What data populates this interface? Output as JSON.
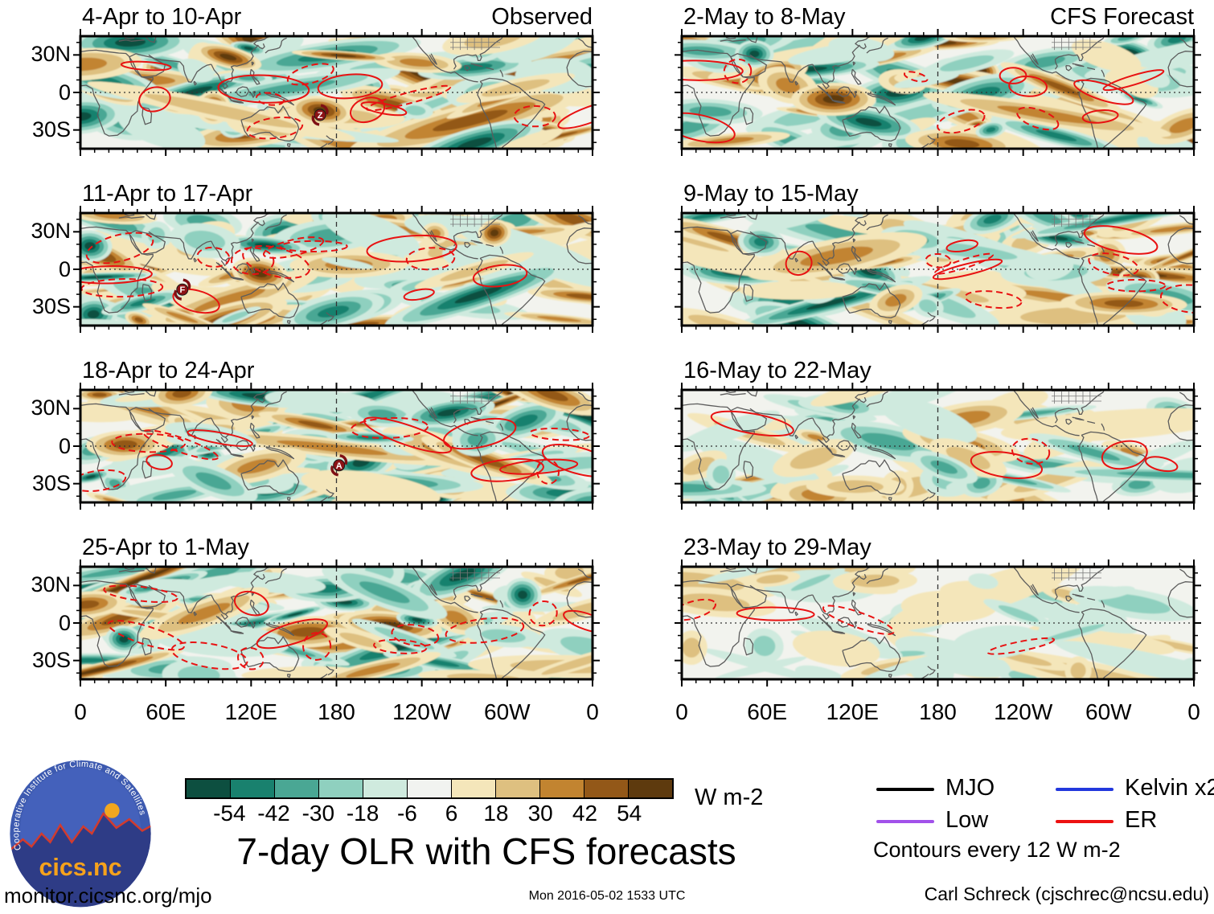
{
  "title": "7-day OLR with CFS forecasts",
  "logo": {
    "org": "Cooperative Institute for Climate and Satellites",
    "name": "cics.nc"
  },
  "footer": {
    "url": "monitor.cicsnc.org/mjo",
    "timestamp": "Mon 2016-05-02 1533 UTC",
    "credit": "Carl Schreck (cjschrec@ncsu.edu)"
  },
  "chart_data": {
    "type": "heatmap",
    "description": "Eight tropical-strip maps (about 45N-45S, 0-360 longitude) of 7-day average OLR anomalies in W m-2. Left column is observed weekly anomalies, right column is CFS forecast weeks. Teal shading = negative OLR (enhanced convection), brown = positive OLR (suppressed). Red ER-wave contours overlaid; letters mark tropical cyclones.",
    "title": "7-day OLR with CFS forecasts",
    "units": "W m-2",
    "columns": [
      "Observed",
      "CFS Forecast"
    ],
    "contour_note": "Contours every 12 W m-2",
    "panels": [
      {
        "title": "4-Apr to 10-Apr",
        "corner_label": "Observed",
        "column": "observed",
        "seed": 7,
        "blobs": 90,
        "intensity": 5,
        "red_contours": 12,
        "markers": [
          {
            "letter": "Z",
            "fx": 0.468,
            "fy": 0.7
          }
        ]
      },
      {
        "title": "11-Apr to 17-Apr",
        "column": "observed",
        "seed": 19,
        "blobs": 92,
        "intensity": 5,
        "red_contours": 13,
        "markers": [
          {
            "letter": "F",
            "fx": 0.199,
            "fy": 0.68
          }
        ]
      },
      {
        "title": "18-Apr to 24-Apr",
        "column": "observed",
        "seed": 31,
        "blobs": 95,
        "intensity": 5,
        "red_contours": 13,
        "markers": [
          {
            "letter": "A",
            "fx": 0.505,
            "fy": 0.67
          }
        ]
      },
      {
        "title": "25-Apr to 1-May",
        "column": "observed",
        "seed": 47,
        "blobs": 90,
        "intensity": 5,
        "red_contours": 12,
        "markers": []
      },
      {
        "title": "2-May to 8-May",
        "corner_label": "CFS Forecast",
        "column": "forecast",
        "seed": 59,
        "blobs": 90,
        "intensity": 5,
        "red_contours": 11,
        "markers": []
      },
      {
        "title": "9-May to 15-May",
        "column": "forecast",
        "seed": 71,
        "blobs": 85,
        "intensity": 5,
        "red_contours": 10,
        "markers": []
      },
      {
        "title": "16-May to 22-May",
        "column": "forecast",
        "seed": 83,
        "blobs": 60,
        "intensity": 3,
        "red_contours": 5,
        "markers": []
      },
      {
        "title": "23-May to 29-May",
        "column": "forecast",
        "seed": 97,
        "blobs": 55,
        "intensity": 2,
        "red_contours": 4,
        "markers": []
      }
    ],
    "colorbar": {
      "units": "W m-2",
      "tick_labels": [
        "-54",
        "-42",
        "-30",
        "-18",
        "-6",
        "6",
        "18",
        "30",
        "42",
        "54"
      ],
      "boundaries": [
        -54,
        -42,
        -30,
        -18,
        -6,
        6,
        18,
        30,
        42,
        54
      ],
      "colors": [
        "#0d4f40",
        "#19816e",
        "#4aa794",
        "#8fd0bf",
        "#cfeade",
        "#f1f3f0",
        "#f4e6ba",
        "#dec080",
        "#c28430",
        "#935818",
        "#5e3a0e"
      ]
    },
    "x_axis": {
      "tick_labels": [
        "0",
        "60E",
        "120E",
        "180",
        "120W",
        "60W",
        "0"
      ],
      "range_deg": [
        0,
        360
      ]
    },
    "y_axis": {
      "tick_labels": [
        "30N",
        "0",
        "30S"
      ],
      "range_deg": [
        -45,
        45
      ]
    },
    "legend": {
      "items": [
        {
          "label": "MJO",
          "color": "#000000"
        },
        {
          "label": "Kelvin x2",
          "color": "#2238dd"
        },
        {
          "label": "Low",
          "color": "#a251ea"
        },
        {
          "label": "ER",
          "color": "#ed1111"
        }
      ],
      "note": "Contours every 12 W m-2"
    }
  }
}
